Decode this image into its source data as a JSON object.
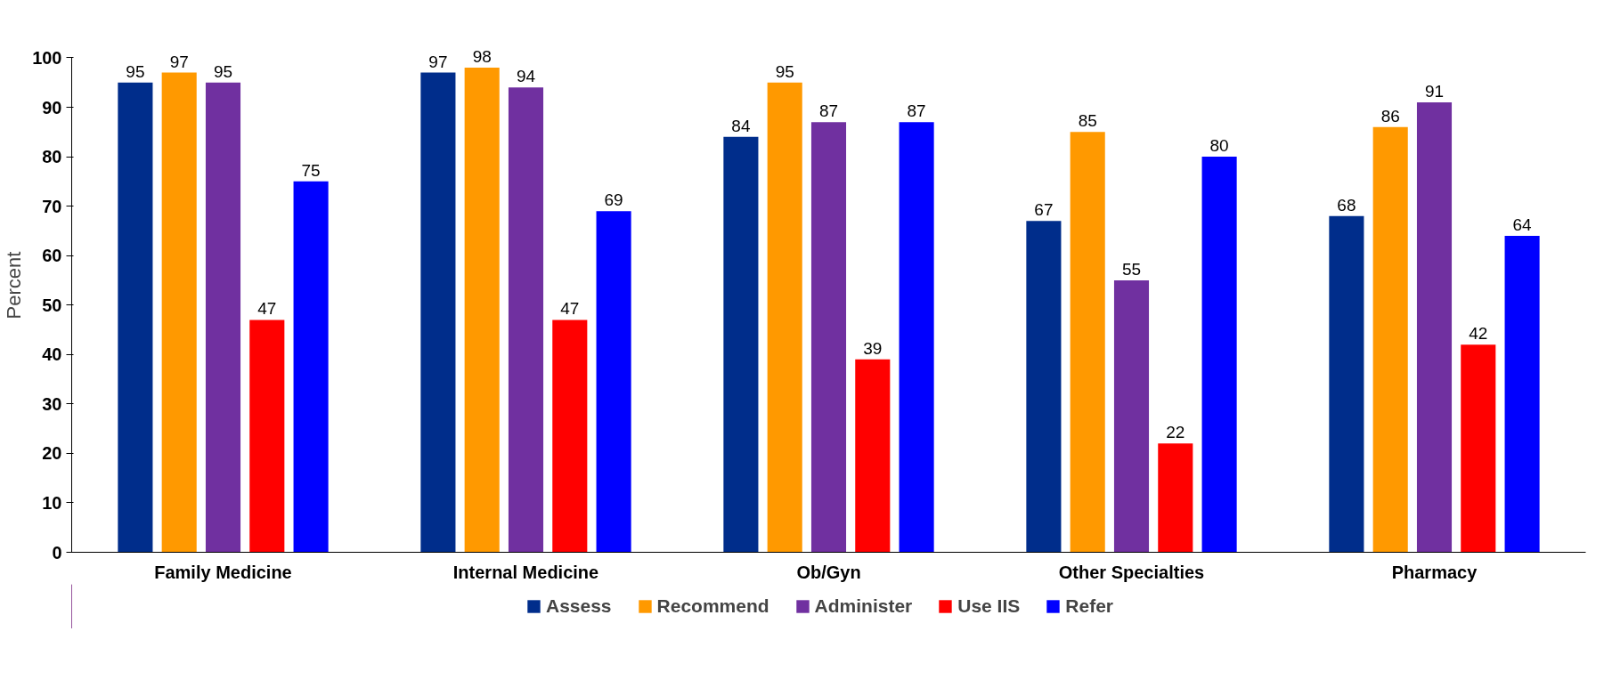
{
  "chart_data": {
    "type": "bar",
    "ylabel": "Percent",
    "categories": [
      "Family Medicine",
      "Internal Medicine",
      "Ob/Gyn",
      "Other Specialties",
      "Pharmacy"
    ],
    "series": [
      {
        "name": "Assess",
        "color": "#002d8b",
        "values": [
          95,
          97,
          84,
          67,
          68
        ]
      },
      {
        "name": "Recommend",
        "color": "#ff9900",
        "values": [
          97,
          98,
          95,
          85,
          86
        ]
      },
      {
        "name": "Administer",
        "color": "#7030a0",
        "values": [
          95,
          94,
          87,
          55,
          91
        ]
      },
      {
        "name": "Use IIS",
        "color": "#ff0000",
        "values": [
          47,
          47,
          39,
          22,
          42
        ]
      },
      {
        "name": "Refer",
        "color": "#0000ff",
        "values": [
          75,
          69,
          87,
          80,
          64
        ]
      }
    ],
    "ylim": [
      0,
      100
    ],
    "yticks": [
      0,
      10,
      20,
      30,
      40,
      50,
      60,
      70,
      80,
      90,
      100
    ],
    "data_labels": true,
    "grid": false,
    "legend": "bottom"
  }
}
